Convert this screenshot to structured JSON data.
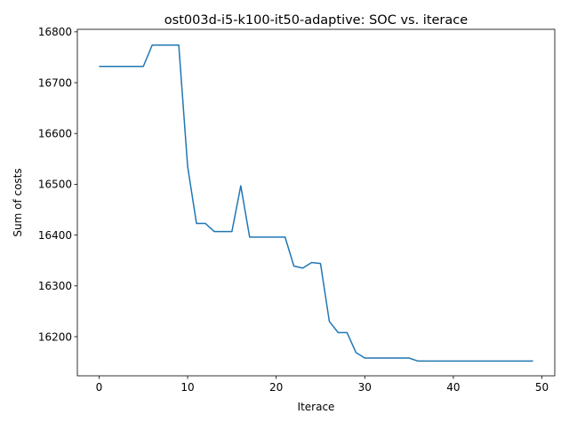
{
  "chart_data": {
    "type": "line",
    "title": "ost003d-i5-k100-it50-adaptive: SOC vs. iterace",
    "xlabel": "Iterace",
    "ylabel": "Sum of costs",
    "xlim": [
      -2.45,
      51.45
    ],
    "ylim": [
      16123,
      16805
    ],
    "xticks": [
      0,
      10,
      20,
      30,
      40,
      50
    ],
    "yticks": [
      16200,
      16300,
      16400,
      16500,
      16600,
      16700,
      16800
    ],
    "grid": false,
    "legend": "none",
    "series": [
      {
        "color": "#1f77b4",
        "x": [
          0,
          1,
          2,
          3,
          4,
          5,
          6,
          7,
          8,
          9,
          10,
          11,
          12,
          13,
          14,
          15,
          16,
          17,
          18,
          19,
          20,
          21,
          22,
          23,
          24,
          25,
          26,
          27,
          28,
          29,
          30,
          31,
          32,
          33,
          34,
          35,
          36,
          37,
          38,
          39,
          40,
          41,
          42,
          43,
          44,
          45,
          46,
          47,
          48,
          49
        ],
        "values": [
          16732,
          16732,
          16732,
          16732,
          16732,
          16732,
          16774,
          16774,
          16774,
          16774,
          16535,
          16423,
          16423,
          16407,
          16407,
          16407,
          16497,
          16396,
          16396,
          16396,
          16396,
          16396,
          16339,
          16335,
          16346,
          16344,
          16230,
          16208,
          16208,
          16169,
          16158,
          16158,
          16158,
          16158,
          16158,
          16158,
          16152,
          16152,
          16152,
          16152,
          16152,
          16152,
          16152,
          16152,
          16152,
          16152,
          16152,
          16152,
          16152,
          16152
        ]
      }
    ]
  }
}
